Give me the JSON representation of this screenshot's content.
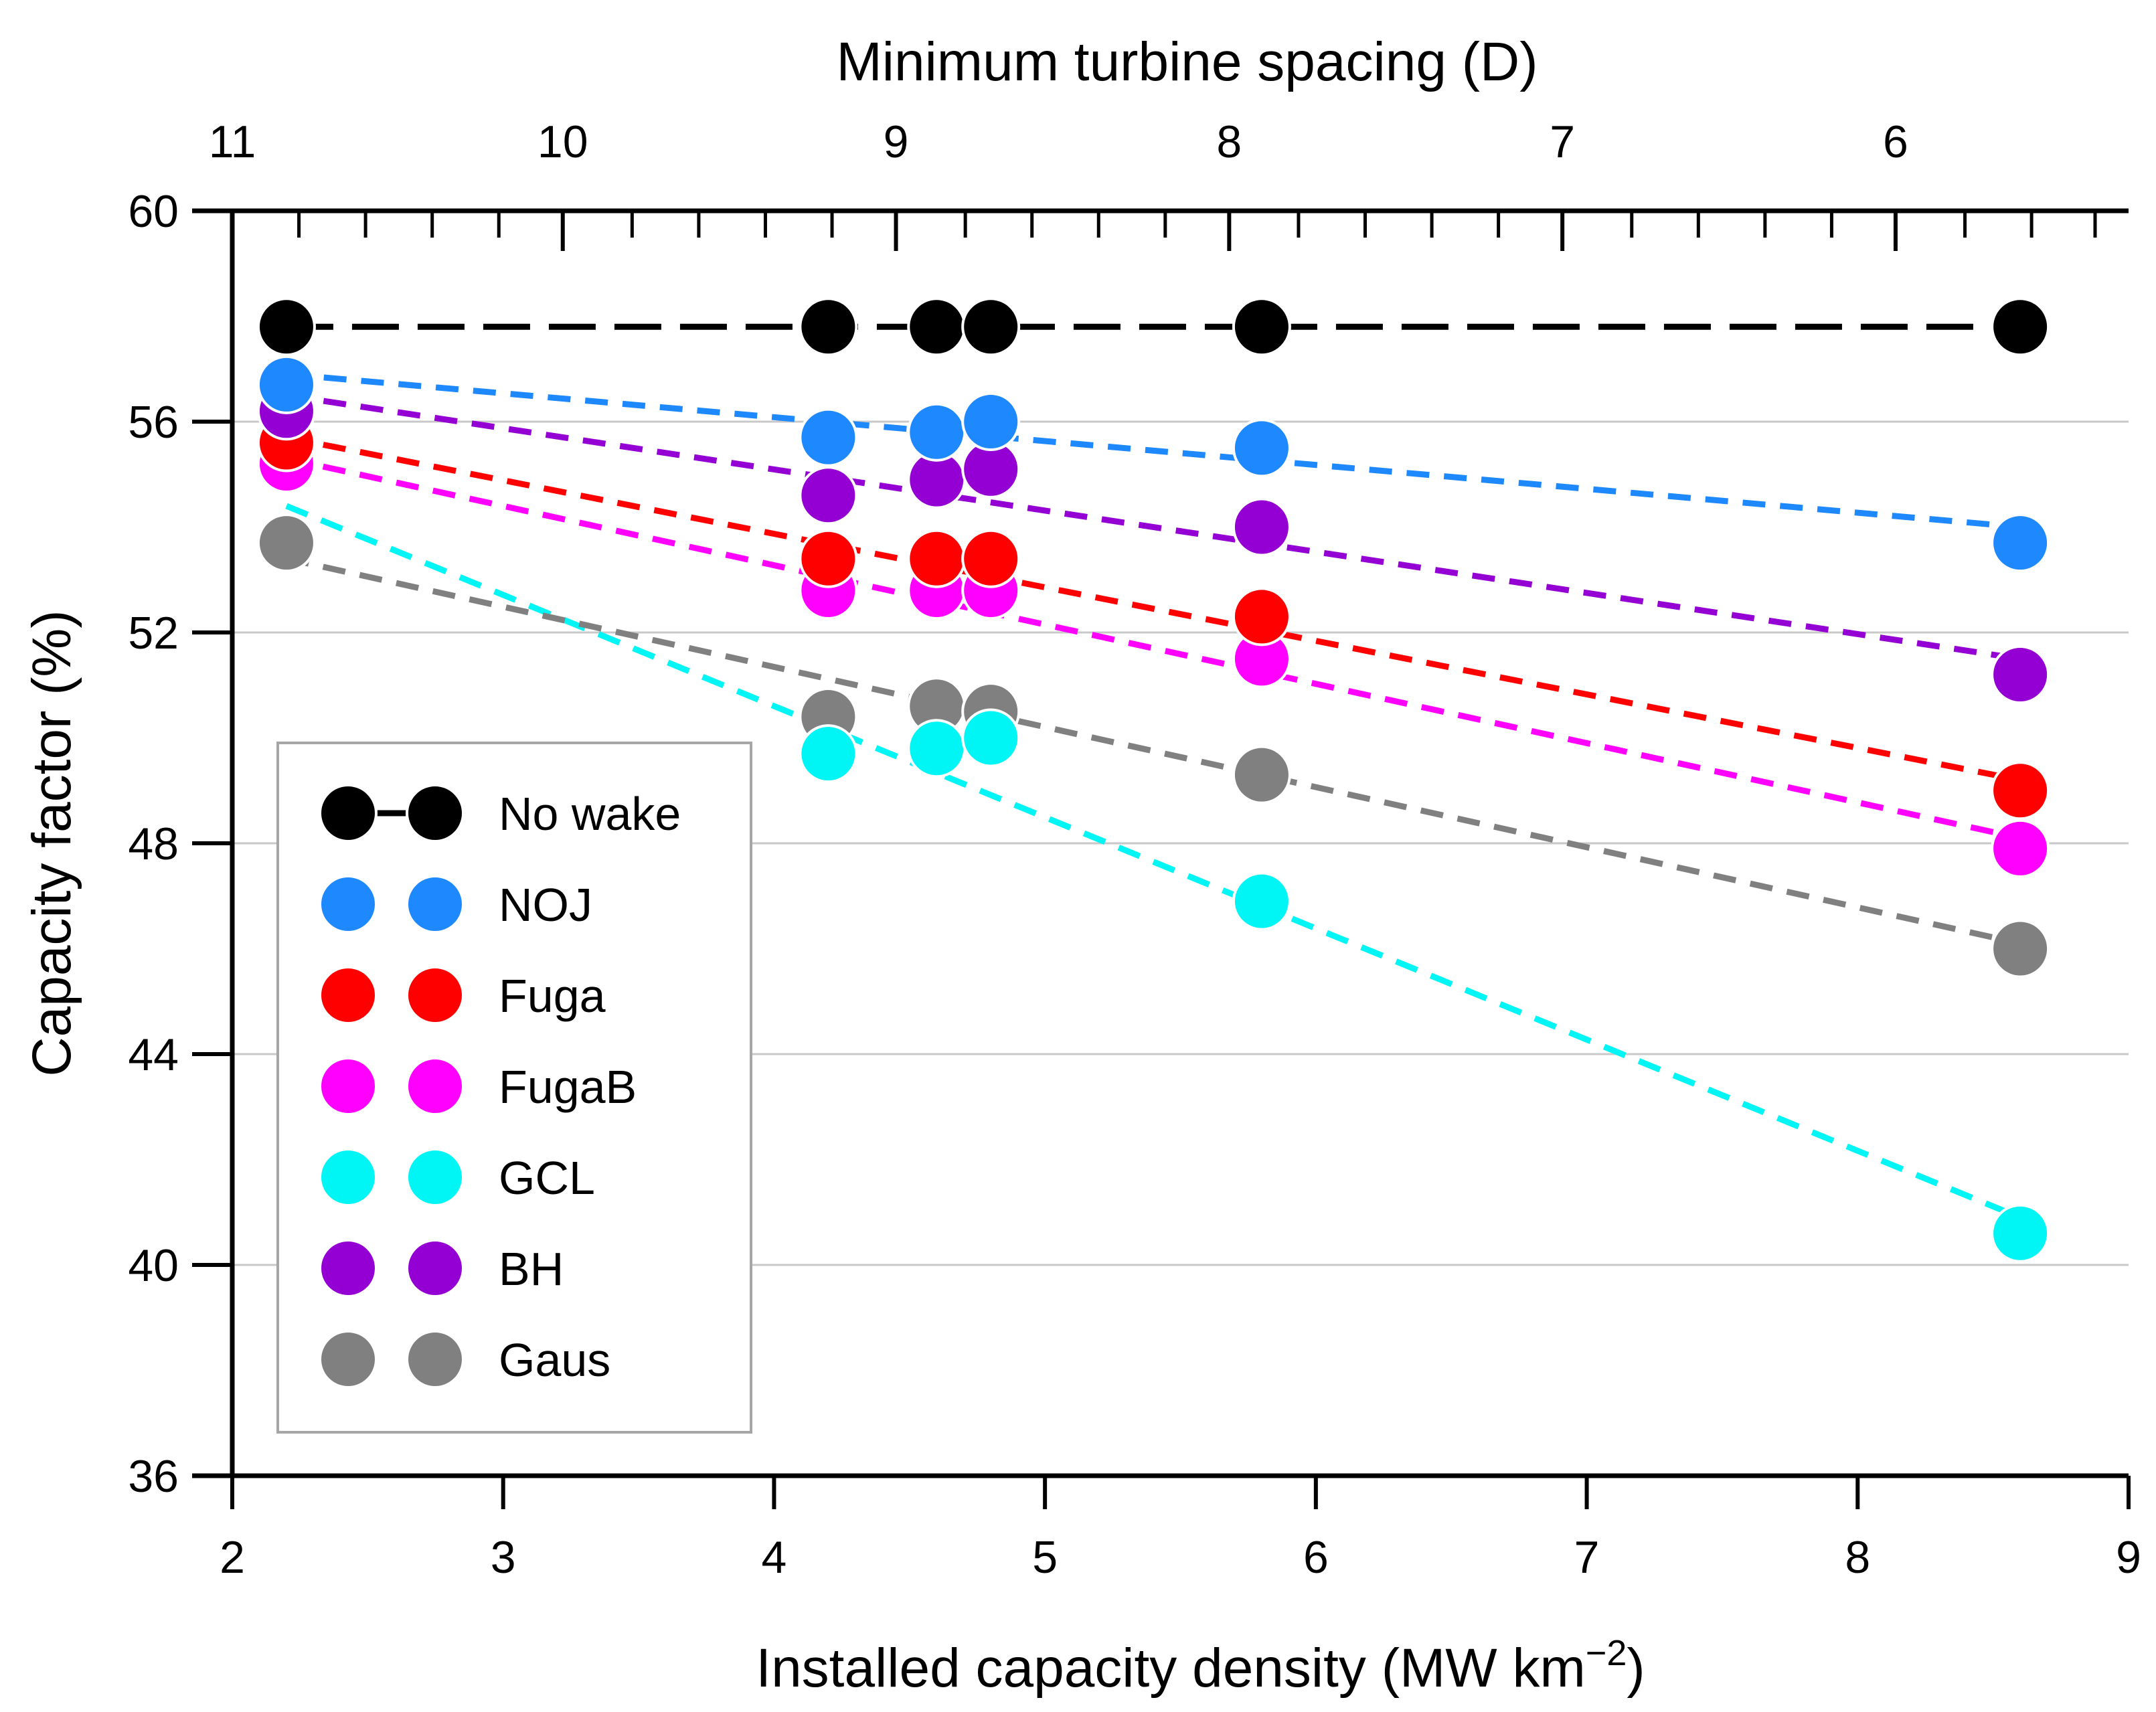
{
  "chart_data": {
    "type": "scatter",
    "xlabel_main": "Installed capacity density (MW km",
    "xlabel_sup": "−2",
    "xlabel_end": ")",
    "x2label": "Minimum turbine spacing (D)",
    "ylabel": "Capacity factor (%)",
    "xlim": [
      2,
      9
    ],
    "ylim": [
      36,
      60
    ],
    "xticks": [
      2,
      3,
      4,
      5,
      6,
      7,
      8,
      9
    ],
    "xtick_labels": [
      "2",
      "3",
      "4",
      "5",
      "6",
      "7",
      "8",
      "9"
    ],
    "yticks": [
      36,
      40,
      44,
      48,
      52,
      56,
      60
    ],
    "ytick_labels": [
      "36",
      "40",
      "44",
      "48",
      "52",
      "56",
      "60"
    ],
    "top_axis_ticks": [
      {
        "spacing": 11,
        "label": "11",
        "density": 2.0
      },
      {
        "spacing": 10,
        "label": "10",
        "density": 3.22
      },
      {
        "spacing": 9,
        "label": "9",
        "density": 4.45
      },
      {
        "spacing": 8,
        "label": "8",
        "density": 5.68
      },
      {
        "spacing": 7,
        "label": "7",
        "density": 6.91
      },
      {
        "spacing": 6,
        "label": "6",
        "density": 8.14
      }
    ],
    "top_axis_minor_spacing": [
      10.8,
      10.6,
      10.4,
      10.2,
      9.8,
      9.6,
      9.4,
      9.2,
      8.8,
      8.6,
      8.4,
      8.2,
      7.8,
      7.6,
      7.4,
      7.2,
      6.8,
      6.6,
      6.4,
      6.2,
      5.8,
      5.6
    ],
    "gridlines": "horizontal",
    "legend_position": "lower-left",
    "x": [
      2.2,
      4.2,
      4.6,
      4.8,
      5.8,
      8.6
    ],
    "series": [
      {
        "name": "No wake",
        "color": "#000000",
        "values": [
          57.8,
          57.8,
          57.8,
          57.8,
          57.8,
          57.8
        ],
        "trend": [
          57.8,
          57.8
        ],
        "style": "long-dash",
        "legend_connected": true
      },
      {
        "name": "NOJ",
        "color": "#1e88ff",
        "values": [
          56.7,
          55.7,
          55.8,
          56.0,
          55.5,
          53.7
        ],
        "trend": [
          56.9,
          54.0
        ],
        "style": "dash"
      },
      {
        "name": "Fuga",
        "color": "#ff0000",
        "values": [
          55.6,
          53.4,
          53.4,
          53.4,
          52.3,
          49.0
        ],
        "trend": [
          55.7,
          49.2
        ],
        "style": "dash"
      },
      {
        "name": "FugaB",
        "color": "#ff00ff",
        "values": [
          55.2,
          52.8,
          52.8,
          52.8,
          51.5,
          47.9
        ],
        "trend": [
          55.3,
          48.1
        ],
        "style": "dash"
      },
      {
        "name": "GCL",
        "color": "#00f5f5",
        "values": [
          null,
          49.7,
          49.8,
          50.0,
          46.9,
          40.6
        ],
        "trend": [
          54.4,
          40.9
        ],
        "style": "dash"
      },
      {
        "name": "BH",
        "color": "#9400d3",
        "values": [
          56.2,
          54.6,
          54.9,
          55.1,
          54.0,
          51.2
        ],
        "trend": [
          56.5,
          51.5
        ],
        "style": "dash"
      },
      {
        "name": "Gaus",
        "color": "#808080",
        "values": [
          53.7,
          50.4,
          50.6,
          50.5,
          49.3,
          46.0
        ],
        "trend": [
          53.4,
          46.1
        ],
        "style": "dash"
      }
    ]
  }
}
